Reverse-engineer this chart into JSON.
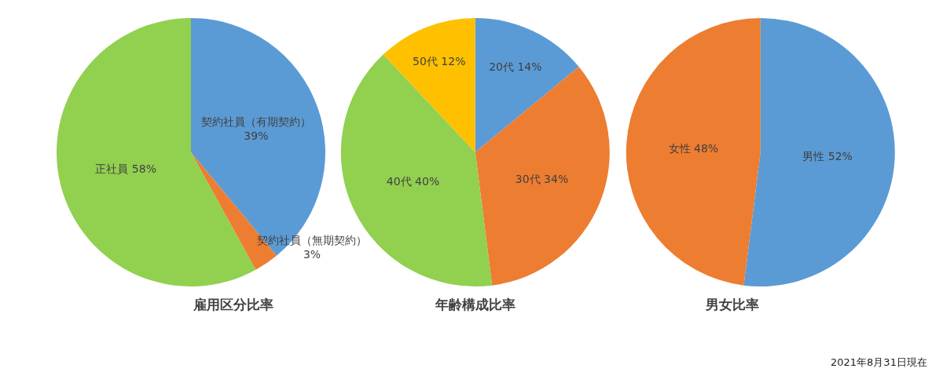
{
  "chart_data": [
    {
      "type": "pie",
      "title": "雇用区分比率",
      "categories": [
        "契約社員（有期契約）",
        "契約社員（無期契約）",
        "正社員"
      ],
      "values": [
        39,
        3,
        58
      ],
      "value_labels": [
        "39%",
        "3%",
        "58%"
      ],
      "colors": [
        "#5b9bd5",
        "#ed7d31",
        "#92d050"
      ],
      "legend": false
    },
    {
      "type": "pie",
      "title": "年齢構成比率",
      "categories": [
        "20代",
        "30代",
        "40代",
        "50代"
      ],
      "values": [
        14,
        34,
        40,
        12
      ],
      "value_labels": [
        "14%",
        "34%",
        "40%",
        "12%"
      ],
      "colors": [
        "#5b9bd5",
        "#ed7d31",
        "#92d050",
        "#ffc000"
      ],
      "legend": false
    },
    {
      "type": "pie",
      "title": "男女比率",
      "categories": [
        "男性",
        "女性"
      ],
      "values": [
        52,
        48
      ],
      "value_labels": [
        "52%",
        "48%"
      ],
      "colors": [
        "#5b9bd5",
        "#ed7d31"
      ],
      "legend": false,
      "annotations": [
        "2021年8月31日現在"
      ]
    }
  ]
}
